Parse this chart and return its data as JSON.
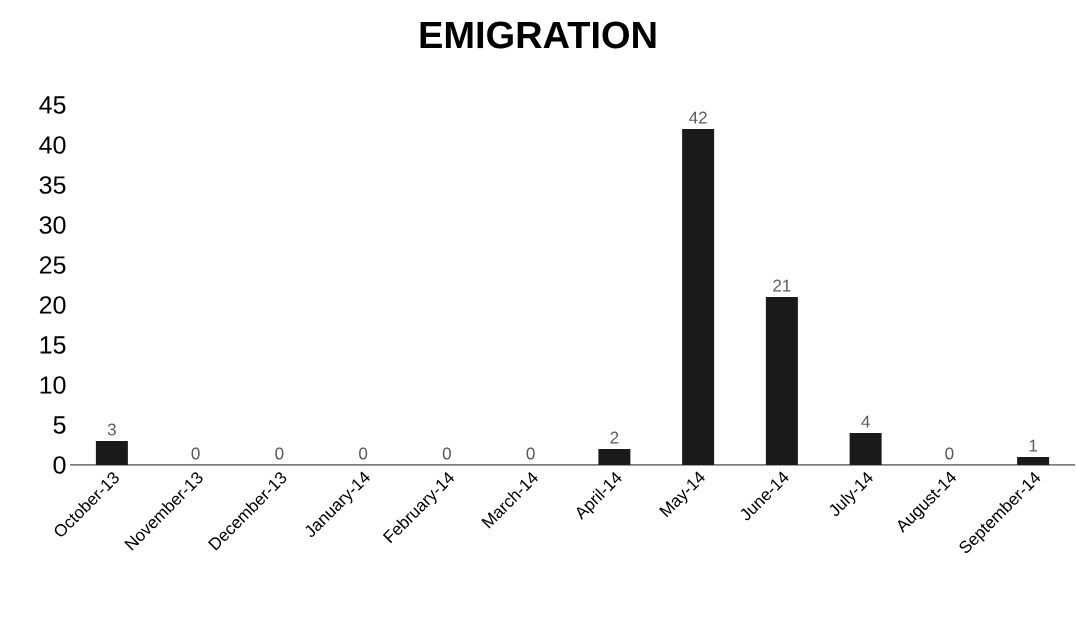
{
  "chart_data": {
    "type": "bar",
    "title": "EMIGRATION",
    "categories": [
      "October-13",
      "November-13",
      "December-13",
      "January-14",
      "February-14",
      "March-14",
      "April-14",
      "May-14",
      "June-14",
      "July-14",
      "August-14",
      "September-14"
    ],
    "values": [
      3,
      0,
      0,
      0,
      0,
      0,
      2,
      42,
      21,
      4,
      0,
      1
    ],
    "color": "#1a1a1a",
    "ylim": [
      0,
      45
    ],
    "yticks": [
      0,
      5,
      10,
      15,
      20,
      25,
      30,
      35,
      40,
      45
    ],
    "data_labels": true,
    "grid": false
  }
}
